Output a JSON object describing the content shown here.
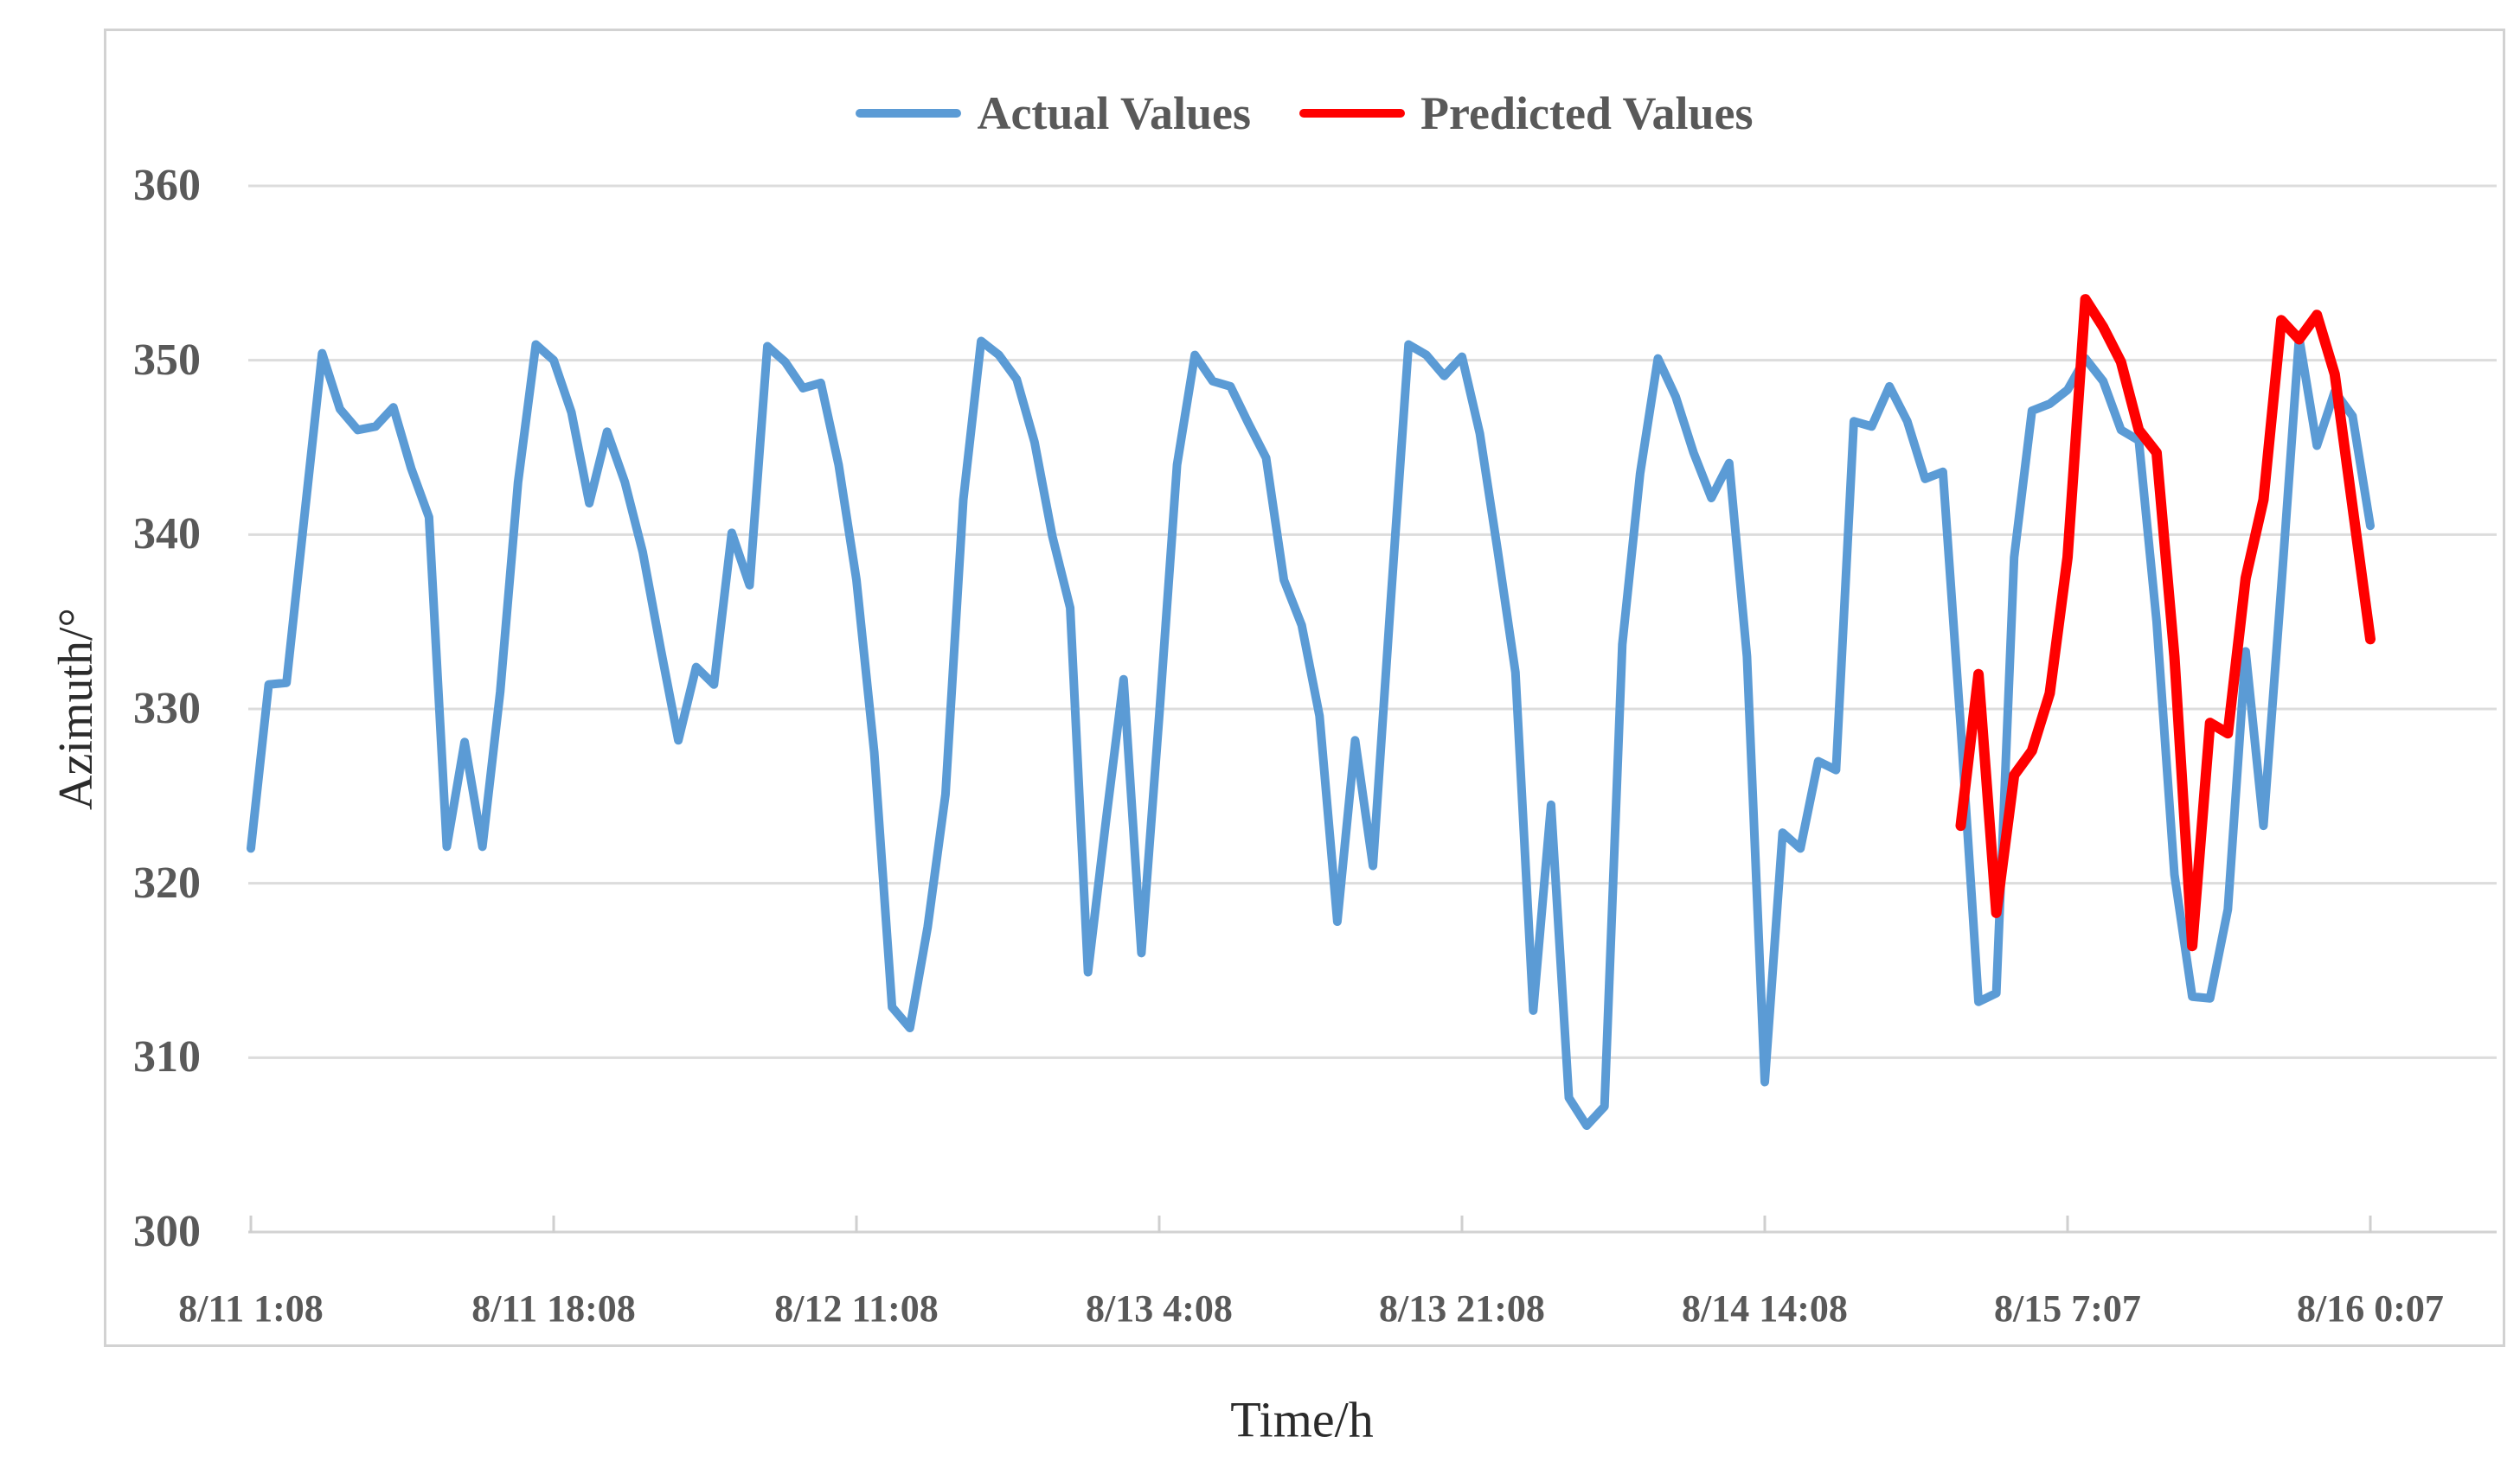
{
  "chart_data": {
    "type": "line",
    "title": "",
    "xlabel": "Time/h",
    "ylabel": "Azimuth/°",
    "ylim": [
      300,
      360
    ],
    "y_ticks": [
      360,
      350,
      340,
      330,
      320,
      310,
      300
    ],
    "x_tick_labels": [
      "8/11 1:08",
      "8/11 18:08",
      "8/12 11:08",
      "8/13 4:08",
      "8/13 21:08",
      "8/14 14:08",
      "8/15 7:07",
      "8/16 0:07"
    ],
    "x_tick_indices": [
      0,
      17,
      34,
      51,
      68,
      85,
      102,
      119
    ],
    "x_points_count": 120,
    "x_unit": "hour",
    "grid": "horizontal",
    "legend_position": "top-center",
    "colors": {
      "actual": "#5B9BD5",
      "predicted": "#FF0000",
      "gridline": "#DCDCDC",
      "axis_line": "#D2D2D2",
      "tick_text": "#595959",
      "axis_title_text": "#2b2b2b",
      "frame_border": "#D2D2D2"
    },
    "series": [
      {
        "name": "Actual Values",
        "color": "#5B9BD5",
        "stroke_width": 10,
        "start_index": 0,
        "values": [
          322.0,
          331.4,
          331.5,
          341.0,
          350.4,
          347.2,
          346.0,
          346.2,
          347.3,
          343.8,
          341.0,
          322.1,
          328.1,
          322.1,
          331.0,
          343.0,
          350.9,
          350.0,
          347.0,
          341.8,
          345.9,
          343.0,
          339.0,
          333.5,
          328.2,
          332.4,
          331.4,
          340.1,
          337.1,
          350.8,
          349.9,
          348.4,
          348.7,
          344.0,
          337.4,
          327.5,
          312.9,
          311.7,
          317.5,
          325.1,
          342.0,
          351.1,
          350.3,
          348.9,
          345.3,
          339.9,
          335.8,
          314.9,
          323.5,
          331.7,
          316.0,
          329.6,
          344.0,
          350.3,
          348.8,
          348.5,
          346.4,
          344.4,
          337.4,
          334.8,
          329.6,
          317.8,
          328.2,
          321.0,
          336.2,
          350.9,
          350.3,
          349.1,
          350.2,
          345.8,
          339.1,
          332.1,
          312.7,
          324.5,
          307.7,
          306.1,
          307.2,
          333.7,
          343.5,
          350.1,
          347.9,
          344.7,
          342.1,
          344.1,
          333.0,
          308.6,
          322.9,
          322.0,
          327.0,
          326.5,
          346.5,
          346.2,
          348.5,
          346.5,
          343.2,
          343.6,
          329.0,
          313.2,
          313.7,
          338.7,
          347.1,
          347.5,
          348.3,
          350.1,
          348.8,
          346.0,
          345.4,
          335.0,
          320.5,
          313.5,
          313.4,
          318.5,
          333.3,
          323.3,
          337.0,
          351.3,
          345.1,
          348.2,
          346.8,
          340.5
        ]
      },
      {
        "name": "Predicted Values",
        "color": "#FF0000",
        "stroke_width": 12,
        "start_index": 96,
        "values": [
          323.3,
          332.0,
          318.3,
          326.2,
          327.6,
          330.9,
          338.7,
          353.5,
          351.9,
          349.9,
          346.0,
          344.7,
          333.0,
          316.4,
          329.2,
          328.6,
          337.5,
          342.0,
          352.3,
          351.2,
          352.6,
          349.2,
          341.6,
          334.0
        ]
      }
    ]
  }
}
